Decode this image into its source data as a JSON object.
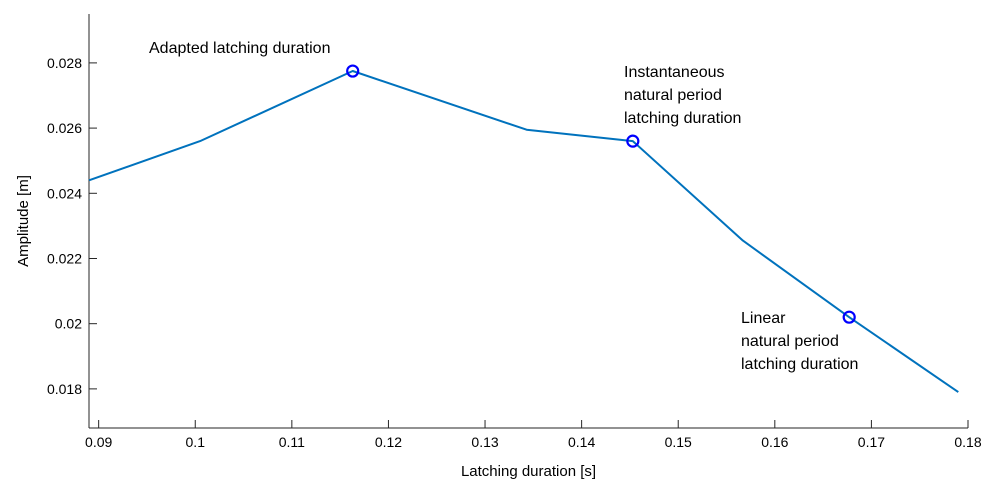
{
  "chart_data": {
    "type": "line",
    "xlabel": "Latching duration [s]",
    "ylabel": "Amplitude [m]",
    "xlim": [
      0.089,
      0.18
    ],
    "ylim": [
      0.0168,
      0.0295
    ],
    "grid": false,
    "x_ticks": [
      0.09,
      0.1,
      0.11,
      0.12,
      0.13,
      0.14,
      0.15,
      0.16,
      0.17,
      0.18
    ],
    "x_tick_labels": [
      "0.09",
      "0.1",
      "0.11",
      "0.12",
      "0.13",
      "0.14",
      "0.15",
      "0.16",
      "0.17",
      "0.18"
    ],
    "y_ticks": [
      0.018,
      0.02,
      0.022,
      0.024,
      0.026,
      0.028
    ],
    "y_tick_labels": [
      "0.018",
      "0.02",
      "0.022",
      "0.024",
      "0.026",
      "0.028"
    ],
    "series": [
      {
        "color": "#0072BD",
        "x": [
          0.089,
          0.1005,
          0.1163,
          0.1343,
          0.1453,
          0.1567,
          0.1677,
          0.179
        ],
        "y": [
          0.0244,
          0.0256,
          0.02775,
          0.02595,
          0.0256,
          0.02255,
          0.0202,
          0.0179
        ]
      }
    ],
    "markers": [
      {
        "x": 0.1163,
        "y": 0.02775,
        "color": "#0000FF",
        "shape": "circle"
      },
      {
        "x": 0.1453,
        "y": 0.0256,
        "color": "#0000FF",
        "shape": "circle"
      },
      {
        "x": 0.1677,
        "y": 0.0202,
        "color": "#0000FF",
        "shape": "circle"
      }
    ],
    "annotations": [
      {
        "lines": [
          "Adapted latching duration"
        ]
      },
      {
        "lines": [
          "Instantaneous",
          "natural period",
          "latching duration"
        ]
      },
      {
        "lines": [
          "Linear",
          "natural period",
          "latching duration"
        ]
      }
    ]
  }
}
